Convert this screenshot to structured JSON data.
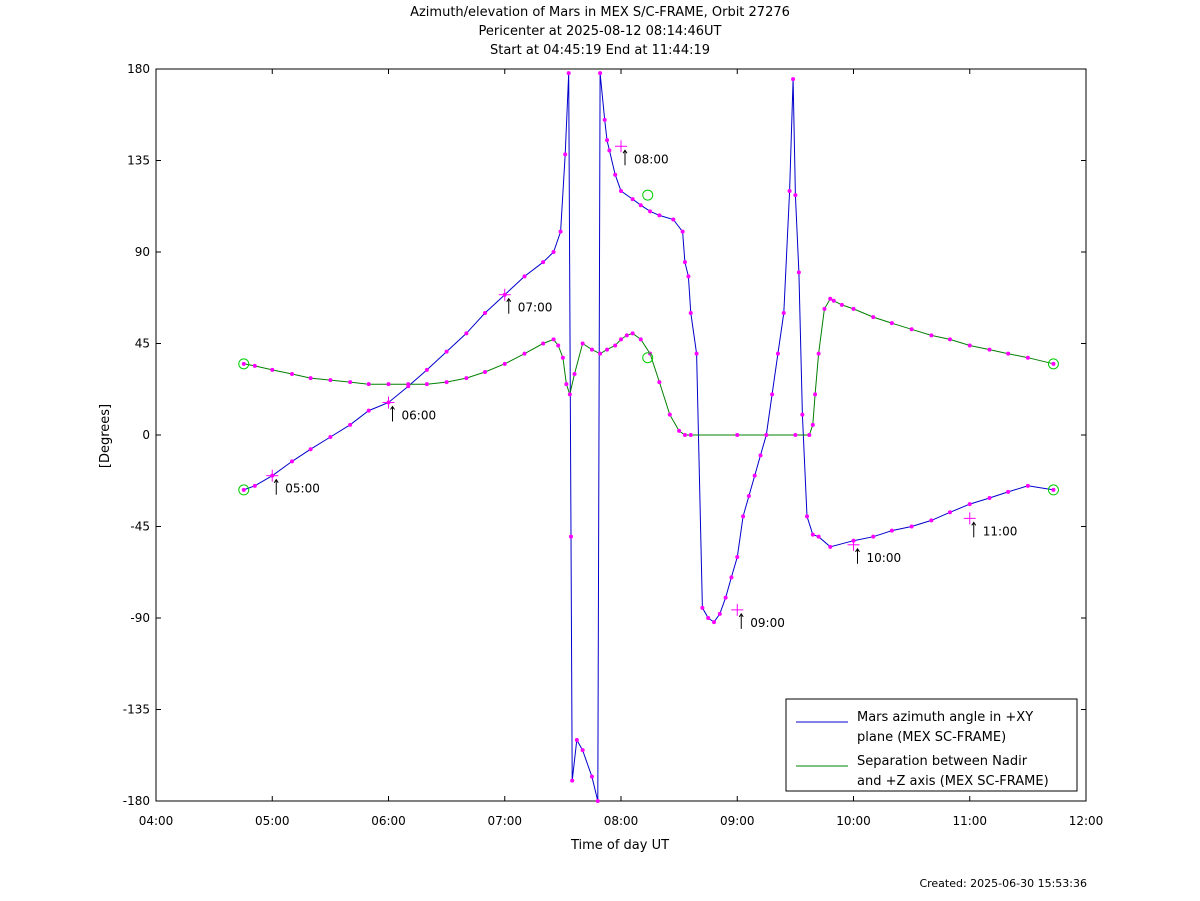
{
  "chart_data": {
    "type": "line",
    "title": "Azimuth/elevation of Mars in MEX S/C-FRAME,  Orbit 27276",
    "subtitle_lines": [
      "Pericenter at 2025-08-12 08:14:46UT",
      "Start at 04:45:19 End at 11:44:19"
    ],
    "xlabel": "Time of day UT",
    "ylabel": "[Degrees]",
    "xlim_hours": [
      4,
      12
    ],
    "ylim": [
      -180,
      180
    ],
    "x_ticks": [
      "04:00",
      "05:00",
      "06:00",
      "07:00",
      "08:00",
      "09:00",
      "10:00",
      "11:00",
      "12:00"
    ],
    "y_ticks": [
      "180",
      "135",
      "90",
      "45",
      "0",
      "-45",
      "-90",
      "-135",
      "-180"
    ],
    "legend": {
      "placement": "bottom-right",
      "entries": [
        {
          "lines": [
            "Mars azimuth angle in +XY",
            "plane (MEX SC-FRAME)"
          ],
          "color": "#0000cc"
        },
        {
          "lines": [
            "Separation between Nadir",
            "and +Z axis (MEX SC-FRAME)"
          ],
          "color": "#008000"
        }
      ]
    },
    "series": [
      {
        "name": "Mars azimuth angle in +XY plane (MEX SC-FRAME)",
        "color": "#0000cc",
        "x_hours": [
          4.755,
          4.85,
          5.0,
          5.17,
          5.33,
          5.5,
          5.67,
          5.83,
          6.0,
          6.17,
          6.33,
          6.5,
          6.67,
          6.83,
          7.0,
          7.17,
          7.33,
          7.42,
          7.48,
          7.52,
          7.55,
          7.57,
          7.58,
          7.62,
          7.67,
          7.75,
          7.8,
          7.82,
          7.86,
          7.88,
          7.9,
          7.95,
          8.0,
          8.1,
          8.17,
          8.25,
          8.33,
          8.45,
          8.53,
          8.55,
          8.58,
          8.6,
          8.65,
          8.7,
          8.75,
          8.8,
          8.85,
          8.9,
          8.95,
          9.0,
          9.05,
          9.1,
          9.15,
          9.2,
          9.25,
          9.3,
          9.35,
          9.4,
          9.45,
          9.48,
          9.5,
          9.53,
          9.56,
          9.6,
          9.65,
          9.7,
          9.8,
          10.0,
          10.17,
          10.33,
          10.5,
          10.67,
          10.83,
          11.0,
          11.17,
          11.33,
          11.5,
          11.72
        ],
        "y_deg": [
          -27,
          -25,
          -20,
          -13,
          -7,
          -1,
          5,
          12,
          16,
          24,
          32,
          41,
          50,
          60,
          69,
          78,
          85,
          90,
          100,
          138,
          178,
          -50,
          -170,
          -150,
          -155,
          -168,
          -180,
          178,
          155,
          145,
          140,
          128,
          120,
          116,
          113,
          110,
          108,
          106,
          100,
          85,
          78,
          60,
          40,
          -85,
          -90,
          -92,
          -88,
          -80,
          -70,
          -60,
          -40,
          -30,
          -20,
          -10,
          0,
          20,
          40,
          60,
          120,
          175,
          118,
          80,
          10,
          -40,
          -49,
          -50,
          -55,
          -52,
          -50,
          -47,
          -45,
          -42,
          -38,
          -34,
          -31,
          -28,
          -25,
          -27
        ]
      },
      {
        "name": "Separation between Nadir and +Z axis (MEX SC-FRAME)",
        "color": "#008000",
        "x_hours": [
          4.755,
          4.85,
          5.0,
          5.17,
          5.33,
          5.5,
          5.67,
          5.83,
          6.0,
          6.17,
          6.33,
          6.5,
          6.67,
          6.83,
          7.0,
          7.17,
          7.33,
          7.42,
          7.46,
          7.5,
          7.53,
          7.56,
          7.6,
          7.67,
          7.75,
          7.82,
          7.88,
          7.95,
          8.0,
          8.05,
          8.1,
          8.17,
          8.25,
          8.33,
          8.42,
          8.5,
          8.55,
          8.6,
          9.0,
          9.5,
          9.62,
          9.65,
          9.67,
          9.7,
          9.75,
          9.8,
          9.83,
          9.9,
          10.0,
          10.17,
          10.33,
          10.5,
          10.67,
          10.83,
          11.0,
          11.17,
          11.33,
          11.5,
          11.72
        ],
        "y_deg": [
          35,
          34,
          32,
          30,
          28,
          27,
          26,
          25,
          25,
          25,
          25,
          26,
          28,
          31,
          35,
          40,
          45,
          47,
          44,
          38,
          25,
          20,
          30,
          45,
          42,
          40,
          42,
          44,
          47,
          49,
          50,
          47,
          40,
          26,
          10,
          2,
          0,
          0,
          0,
          0,
          0,
          5,
          20,
          40,
          62,
          67,
          66,
          64,
          62,
          58,
          55,
          52,
          49,
          47,
          44,
          42,
          40,
          38,
          35
        ]
      }
    ],
    "time_annotations": [
      {
        "label": "05:00",
        "x_hours": 5.0,
        "y_deg": -20
      },
      {
        "label": "06:00",
        "x_hours": 6.0,
        "y_deg": 16
      },
      {
        "label": "07:00",
        "x_hours": 7.0,
        "y_deg": 69
      },
      {
        "label": "08:00",
        "x_hours": 8.0,
        "y_deg": 142
      },
      {
        "label": "09:00",
        "x_hours": 9.0,
        "y_deg": -86
      },
      {
        "label": "10:00",
        "x_hours": 10.0,
        "y_deg": -54
      },
      {
        "label": "11:00",
        "x_hours": 11.0,
        "y_deg": -41
      }
    ],
    "open_circles": [
      {
        "x_hours": 4.755,
        "y_deg": -27
      },
      {
        "x_hours": 4.755,
        "y_deg": 35
      },
      {
        "x_hours": 8.23,
        "y_deg": 118
      },
      {
        "x_hours": 8.23,
        "y_deg": 38
      },
      {
        "x_hours": 11.72,
        "y_deg": -27
      },
      {
        "x_hours": 11.72,
        "y_deg": 35
      }
    ]
  },
  "footer": {
    "created": "Created: 2025-06-30 15:53:36"
  }
}
